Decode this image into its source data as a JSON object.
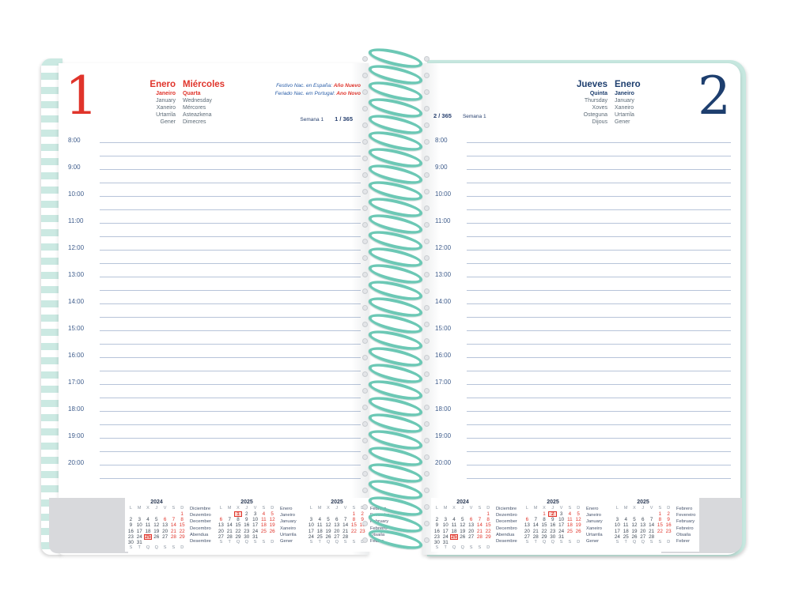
{
  "book": {
    "accent_red": "#e0342b",
    "accent_navy": "#1d3e6e",
    "spiral_color": "#6cc8b5"
  },
  "left_page": {
    "day_number": "1",
    "name_rows": [
      {
        "c1": "Enero",
        "c2": "Miércoles",
        "style": "primary"
      },
      {
        "c1": "Janeiro",
        "c2": "Quarta",
        "style": "secondary"
      },
      {
        "c1": "January",
        "c2": "Wednesday",
        "style": "plain"
      },
      {
        "c1": "Xaneiro",
        "c2": "Mércores",
        "style": "plain"
      },
      {
        "c1": "Urtarrila",
        "c2": "Asteazkena",
        "style": "plain"
      },
      {
        "c1": "Gener",
        "c2": "Dimecres",
        "style": "plain"
      }
    ],
    "holiday_notes": [
      {
        "prefix": "Festivo Nac. en España: ",
        "highlight": "Año Nuevo"
      },
      {
        "prefix": "Feriado Nac. em Portugal: ",
        "highlight": "Ano Novo"
      }
    ],
    "week_label": "Semana 1",
    "day_of_year": "1 / 365",
    "hours": [
      "8:00",
      "9:00",
      "10:00",
      "11:00",
      "12:00",
      "13:00",
      "14:00",
      "15:00",
      "16:00",
      "17:00",
      "18:00",
      "19:00",
      "20:00"
    ],
    "calendars": [
      {
        "year": "2024",
        "dow_top": [
          "L",
          "M",
          "X",
          "J",
          "V",
          "S",
          "D"
        ],
        "dow_bottom": [
          "S",
          "T",
          "Q",
          "Q",
          "S",
          "S",
          "D"
        ],
        "weeks": [
          [
            "",
            "",
            "",
            "",
            "",
            "",
            "1"
          ],
          [
            "2",
            "3",
            "4",
            "5",
            "6",
            "7",
            "8"
          ],
          [
            "9",
            "10",
            "11",
            "12",
            "13",
            "14",
            "15"
          ],
          [
            "16",
            "17",
            "18",
            "19",
            "20",
            "21",
            "22"
          ],
          [
            "23",
            "24",
            "25",
            "26",
            "27",
            "28",
            "29"
          ],
          [
            "30",
            "31",
            "",
            "",
            "",
            "",
            ""
          ]
        ],
        "red_days": [
          "1",
          "6",
          "7",
          "8",
          "14",
          "15",
          "21",
          "22",
          "25",
          "28",
          "29"
        ],
        "boxed_day": "25",
        "month_names": [
          "Diciembre",
          "Dezembro",
          "December",
          "Decembro",
          "Abendua",
          "Desembre"
        ]
      },
      {
        "year": "2025",
        "dow_top": [
          "L",
          "M",
          "X",
          "J",
          "V",
          "S",
          "D"
        ],
        "dow_bottom": [
          "S",
          "T",
          "Q",
          "Q",
          "S",
          "S",
          "D"
        ],
        "weeks": [
          [
            "",
            "",
            "1",
            "2",
            "3",
            "4",
            "5"
          ],
          [
            "6",
            "7",
            "8",
            "9",
            "10",
            "11",
            "12"
          ],
          [
            "13",
            "14",
            "15",
            "16",
            "17",
            "18",
            "19"
          ],
          [
            "20",
            "21",
            "22",
            "23",
            "24",
            "25",
            "26"
          ],
          [
            "27",
            "28",
            "29",
            "30",
            "31",
            "",
            ""
          ]
        ],
        "red_days": [
          "1",
          "4",
          "5",
          "6",
          "11",
          "12",
          "18",
          "19",
          "25",
          "26"
        ],
        "boxed_day": "1",
        "month_names": [
          "Enero",
          "Janeiro",
          "January",
          "Xaneiro",
          "Urtarrila",
          "Gener"
        ]
      },
      {
        "year": "2025",
        "dow_top": [
          "L",
          "M",
          "X",
          "J",
          "V",
          "S",
          "D"
        ],
        "dow_bottom": [
          "S",
          "T",
          "Q",
          "Q",
          "S",
          "S",
          "D"
        ],
        "weeks": [
          [
            "",
            "",
            "",
            "",
            "",
            "1",
            "2"
          ],
          [
            "3",
            "4",
            "5",
            "6",
            "7",
            "8",
            "9"
          ],
          [
            "10",
            "11",
            "12",
            "13",
            "14",
            "15",
            "16"
          ],
          [
            "17",
            "18",
            "19",
            "20",
            "21",
            "22",
            "23"
          ],
          [
            "24",
            "25",
            "26",
            "27",
            "28",
            "",
            ""
          ]
        ],
        "red_days": [
          "1",
          "2",
          "8",
          "9",
          "15",
          "16",
          "22",
          "23"
        ],
        "boxed_day": "",
        "month_names": [
          "Febrero",
          "Fevereiro",
          "February",
          "Febreiro",
          "Otsaila",
          "Febrer"
        ]
      }
    ]
  },
  "right_page": {
    "day_number": "2",
    "name_rows": [
      {
        "c1": "Jueves",
        "c2": "Enero",
        "style": "primary"
      },
      {
        "c1": "Quinta",
        "c2": "Janeiro",
        "style": "secondary"
      },
      {
        "c1": "Thursday",
        "c2": "January",
        "style": "plain"
      },
      {
        "c1": "Xoves",
        "c2": "Xaneiro",
        "style": "plain"
      },
      {
        "c1": "Osteguna",
        "c2": "Urtarrila",
        "style": "plain"
      },
      {
        "c1": "Dijous",
        "c2": "Gener",
        "style": "plain"
      }
    ],
    "week_label": "Semana 1",
    "day_of_year": "2 / 365",
    "hours": [
      "8:00",
      "9:00",
      "10:00",
      "11:00",
      "12:00",
      "13:00",
      "14:00",
      "15:00",
      "16:00",
      "17:00",
      "18:00",
      "19:00",
      "20:00"
    ],
    "calendars": [
      {
        "year": "2024",
        "dow_top": [
          "L",
          "M",
          "X",
          "J",
          "V",
          "S",
          "D"
        ],
        "dow_bottom": [
          "S",
          "T",
          "Q",
          "Q",
          "S",
          "S",
          "D"
        ],
        "weeks": [
          [
            "",
            "",
            "",
            "",
            "",
            "",
            "1"
          ],
          [
            "2",
            "3",
            "4",
            "5",
            "6",
            "7",
            "8"
          ],
          [
            "9",
            "10",
            "11",
            "12",
            "13",
            "14",
            "15"
          ],
          [
            "16",
            "17",
            "18",
            "19",
            "20",
            "21",
            "22"
          ],
          [
            "23",
            "24",
            "25",
            "26",
            "27",
            "28",
            "29"
          ],
          [
            "30",
            "31",
            "",
            "",
            "",
            "",
            ""
          ]
        ],
        "red_days": [
          "1",
          "6",
          "7",
          "8",
          "14",
          "15",
          "21",
          "22",
          "25",
          "28",
          "29"
        ],
        "boxed_day": "25",
        "month_names": [
          "Diciembre",
          "Dezembro",
          "December",
          "Decembro",
          "Abendua",
          "Desembre"
        ]
      },
      {
        "year": "2025",
        "dow_top": [
          "L",
          "M",
          "X",
          "J",
          "V",
          "S",
          "D"
        ],
        "dow_bottom": [
          "S",
          "T",
          "Q",
          "Q",
          "S",
          "S",
          "D"
        ],
        "weeks": [
          [
            "",
            "",
            "1",
            "2",
            "3",
            "4",
            "5"
          ],
          [
            "6",
            "7",
            "8",
            "9",
            "10",
            "11",
            "12"
          ],
          [
            "13",
            "14",
            "15",
            "16",
            "17",
            "18",
            "19"
          ],
          [
            "20",
            "21",
            "22",
            "23",
            "24",
            "25",
            "26"
          ],
          [
            "27",
            "28",
            "29",
            "30",
            "31",
            "",
            ""
          ]
        ],
        "red_days": [
          "1",
          "4",
          "5",
          "6",
          "11",
          "12",
          "18",
          "19",
          "25",
          "26"
        ],
        "boxed_day": "2",
        "month_names": [
          "Enero",
          "Janeiro",
          "January",
          "Xaneiro",
          "Urtarrila",
          "Gener"
        ]
      },
      {
        "year": "2025",
        "dow_top": [
          "L",
          "M",
          "X",
          "J",
          "V",
          "S",
          "D"
        ],
        "dow_bottom": [
          "S",
          "T",
          "Q",
          "Q",
          "S",
          "S",
          "D"
        ],
        "weeks": [
          [
            "",
            "",
            "",
            "",
            "",
            "1",
            "2"
          ],
          [
            "3",
            "4",
            "5",
            "6",
            "7",
            "8",
            "9"
          ],
          [
            "10",
            "11",
            "12",
            "13",
            "14",
            "15",
            "16"
          ],
          [
            "17",
            "18",
            "19",
            "20",
            "21",
            "22",
            "23"
          ],
          [
            "24",
            "25",
            "26",
            "27",
            "28",
            "",
            ""
          ]
        ],
        "red_days": [
          "1",
          "2",
          "8",
          "9",
          "15",
          "16",
          "22",
          "23"
        ],
        "boxed_day": "",
        "month_names": [
          "Febrero",
          "Fevereiro",
          "February",
          "Febreiro",
          "Otsaila",
          "Febrer"
        ]
      }
    ]
  }
}
